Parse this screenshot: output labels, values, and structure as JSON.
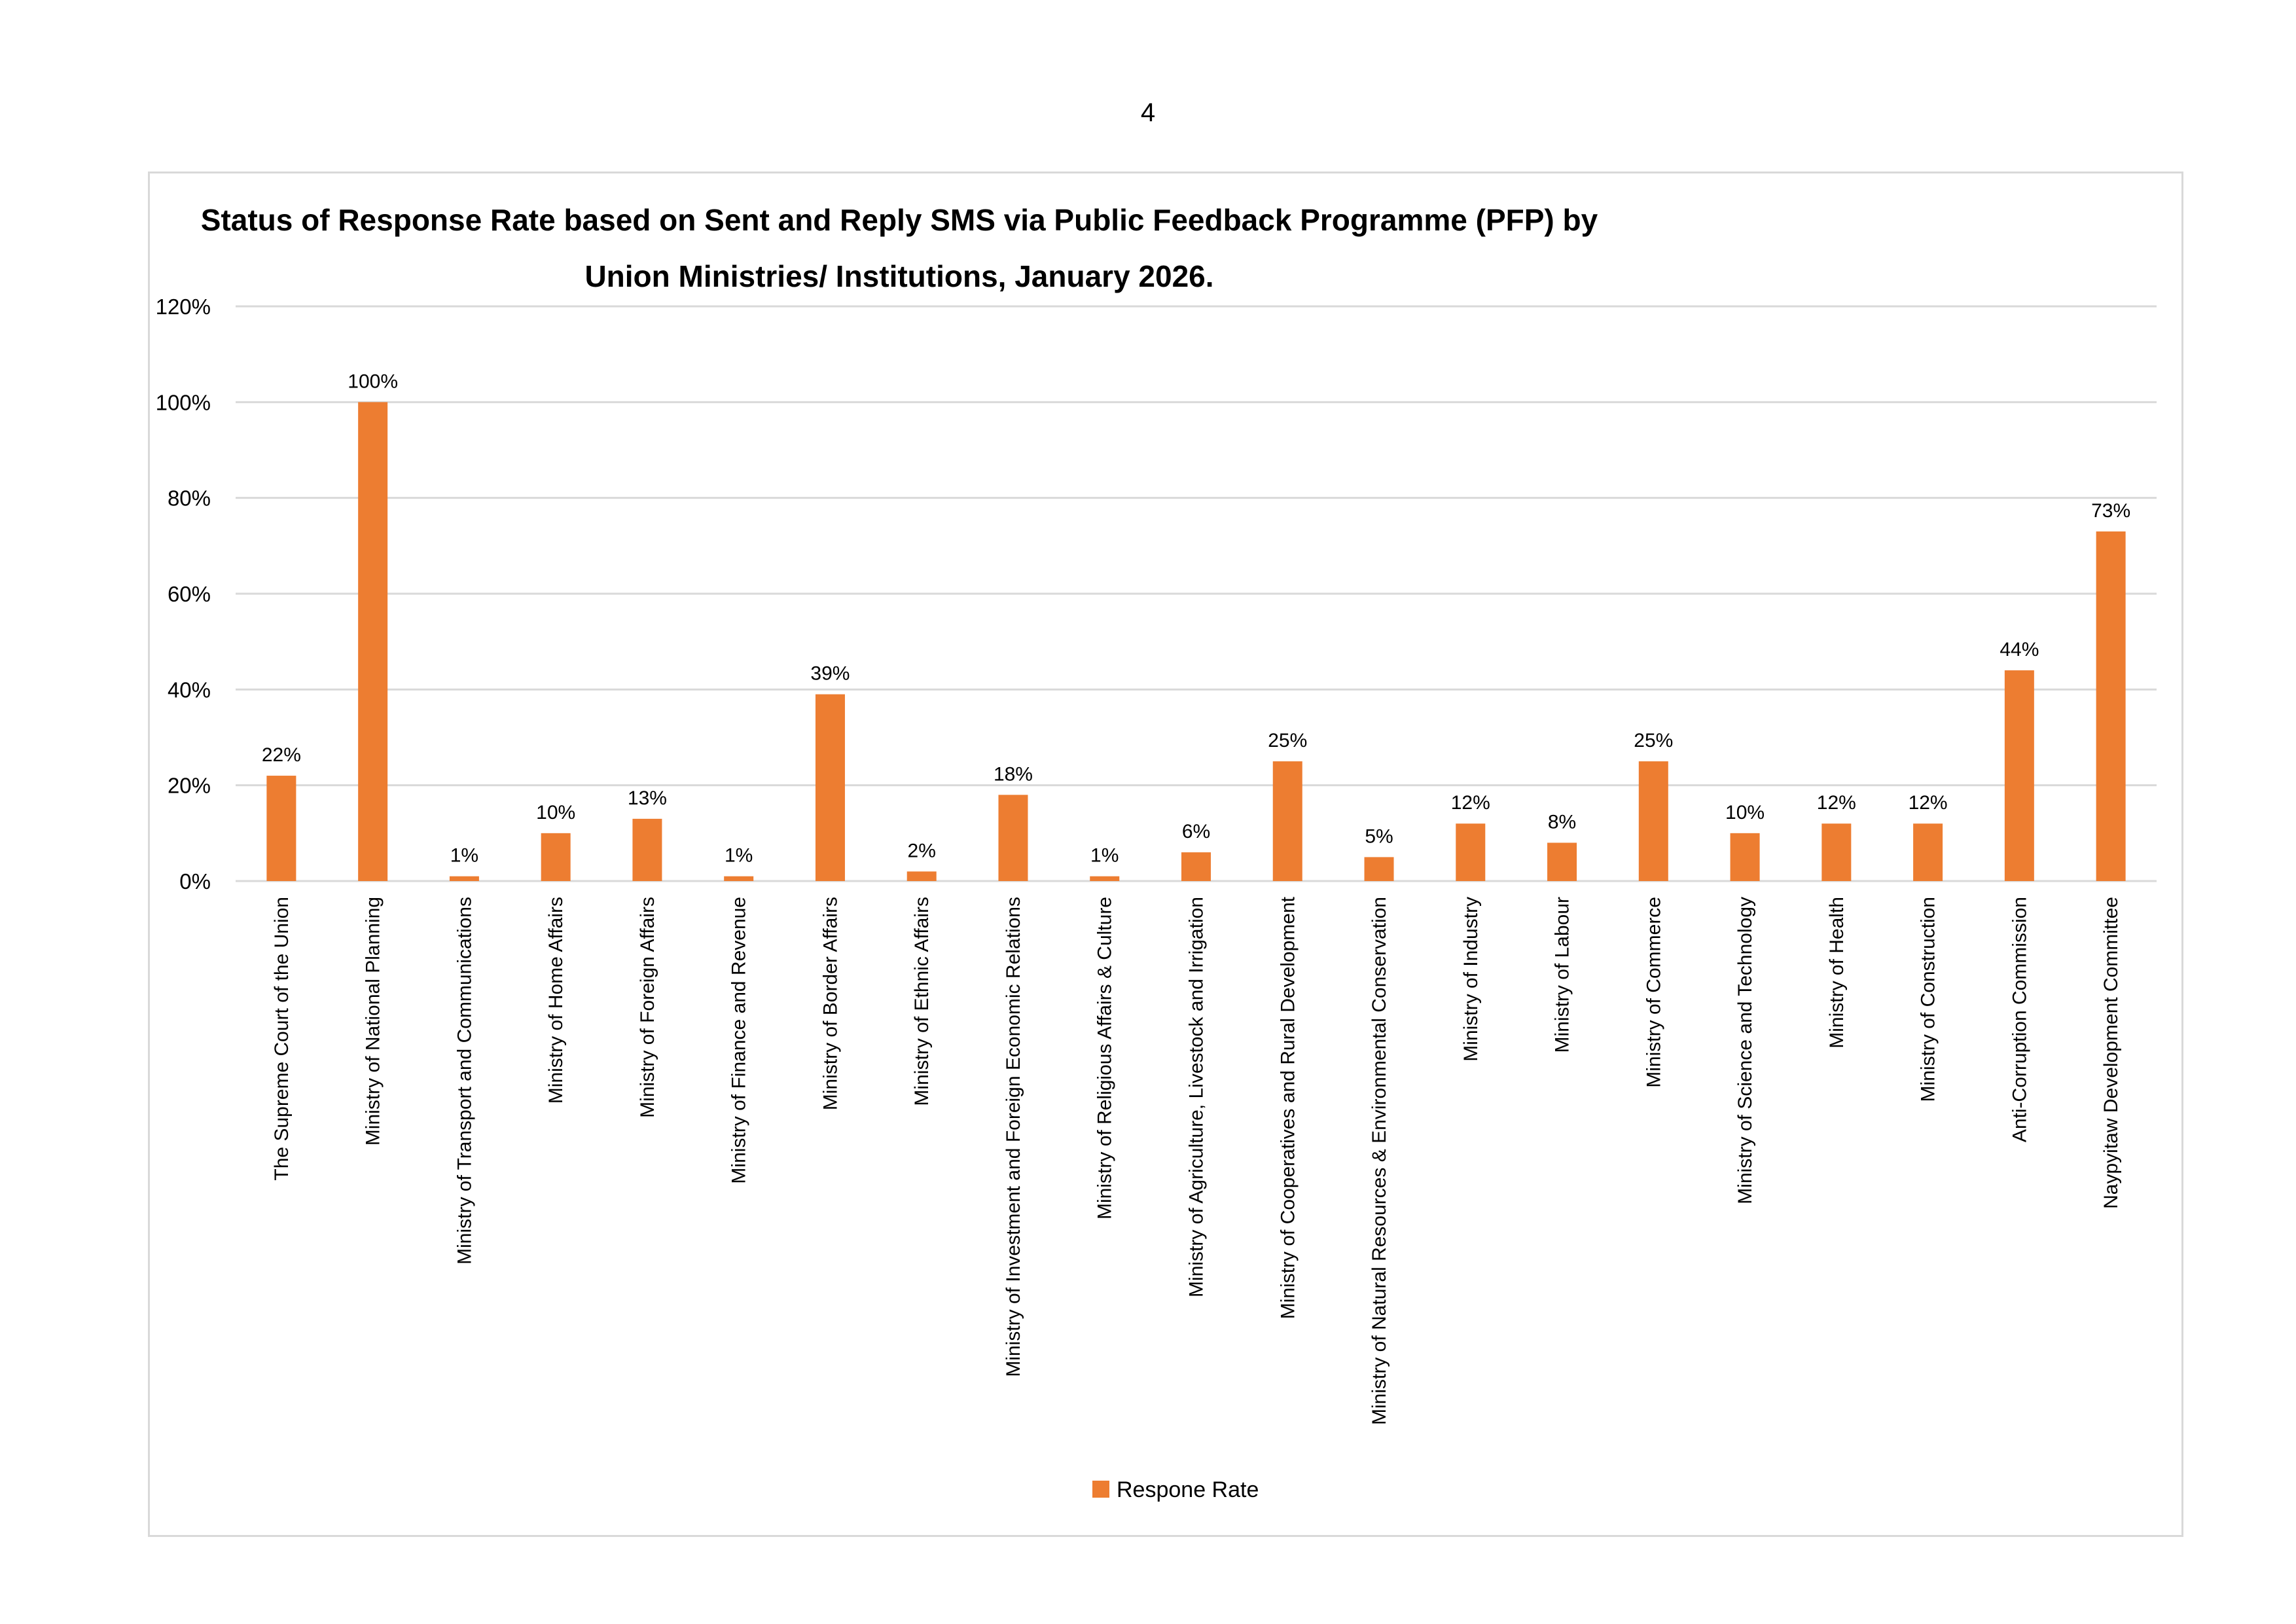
{
  "page": {
    "number": "4"
  },
  "colors": {
    "bar": "#ED7D31",
    "grid": "#d9d9d9",
    "axis": "#d9d9d9"
  },
  "chart_data": {
    "type": "bar",
    "title_lines": [
      "Status of Response Rate based on Sent and Reply SMS via Public Feedback Programme (PFP) by",
      "Union Ministries/ Institutions, January 2026."
    ],
    "categories": [
      "The Supreme Court of the Union",
      "Ministry of National Planning",
      "Ministry of Transport and Communications",
      "Ministry of Home Affairs",
      "Ministry of Foreign Affairs",
      "Ministry of Finance and Revenue",
      "Ministry of Border Affairs",
      "Ministry of Ethnic Affairs",
      "Ministry of Investment and Foreign Economic Relations",
      "Ministry of Religious Affairs & Culture",
      "Ministry of Agriculture, Livestock and Irrigation",
      "Ministry of Cooperatives and Rural Development",
      "Ministry of Natural Resources & Environmental Conservation",
      "Ministry of Industry",
      "Ministry of Labour",
      "Ministry of Commerce",
      "Ministry of Science and Technology",
      "Ministry of Health",
      "Ministry of Construction",
      "Anti-Corruption Commission",
      "Naypyitaw Development Committee"
    ],
    "series": [
      {
        "name": "Respone Rate",
        "values": [
          22,
          100,
          1,
          10,
          13,
          1,
          39,
          2,
          18,
          1,
          6,
          25,
          5,
          12,
          8,
          25,
          10,
          12,
          12,
          44,
          73
        ],
        "labels": [
          "22%",
          "100%",
          "1%",
          "10%",
          "13%",
          "1%",
          "39%",
          "2%",
          "18%",
          "1%",
          "6%",
          "25%",
          "5%",
          "12%",
          "8%",
          "25%",
          "10%",
          "12%",
          "12%",
          "44%",
          "73%"
        ]
      }
    ],
    "y_ticks": [
      "0%",
      "20%",
      "40%",
      "60%",
      "80%",
      "100%",
      "120%"
    ],
    "ylim": [
      0,
      120
    ],
    "grid": true,
    "legend_position": "bottom"
  }
}
